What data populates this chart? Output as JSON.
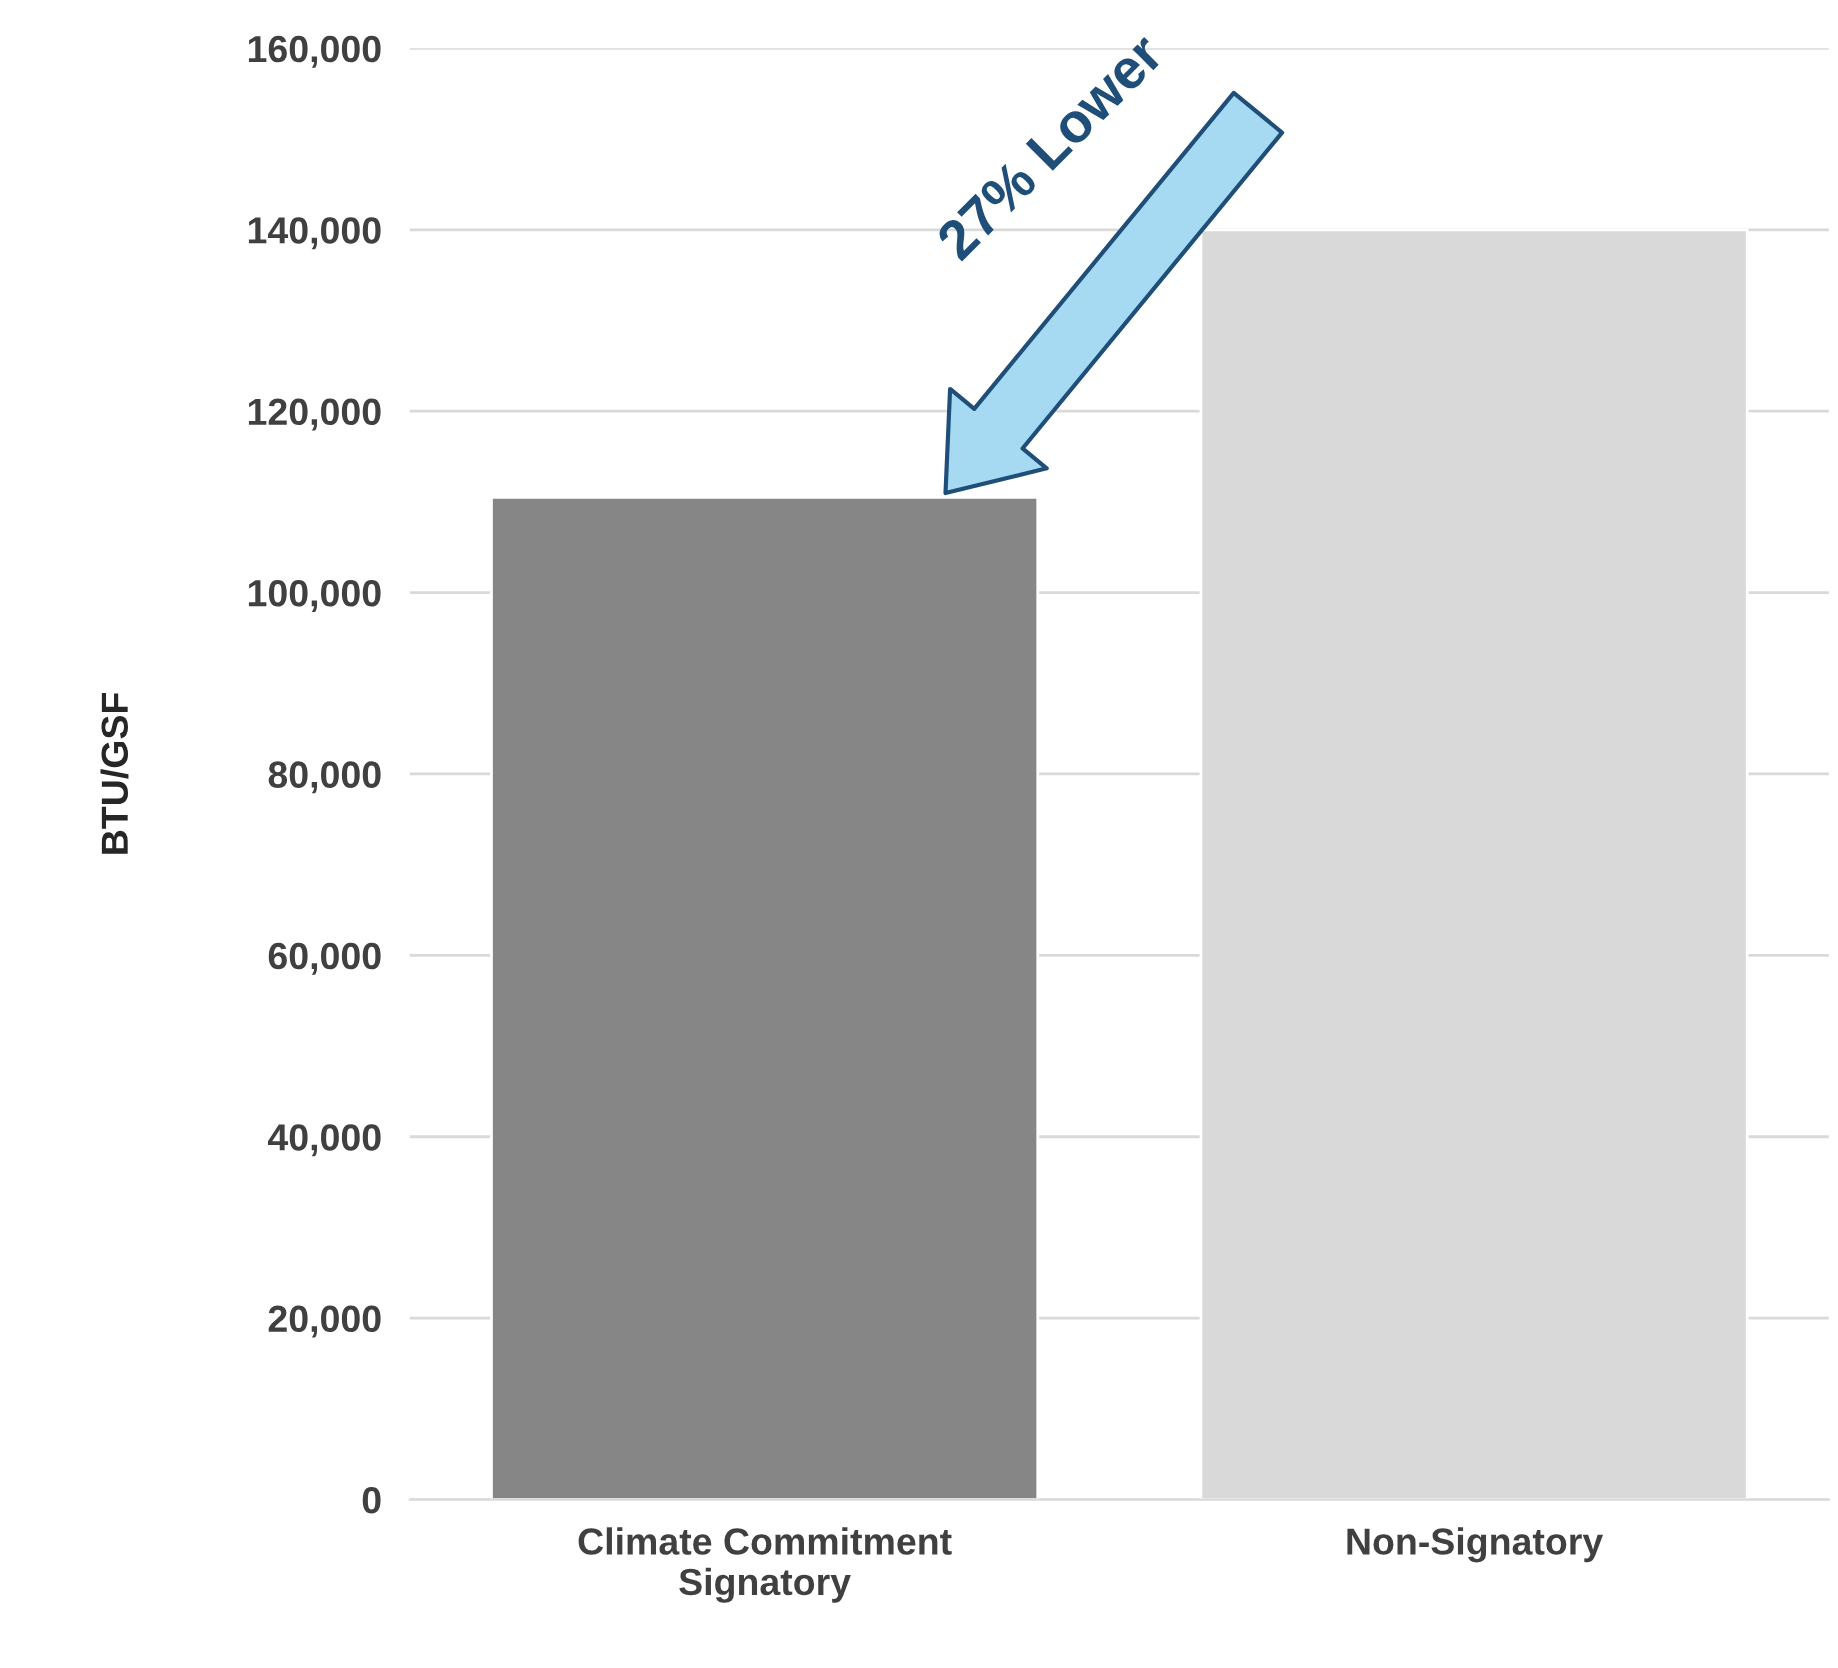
{
  "chart_data": {
    "type": "bar",
    "ylabel": "BTU/GSF",
    "categories": [
      "Climate Commitment\nSignatory",
      "Non-Signatory"
    ],
    "values": [
      110500,
      140000
    ],
    "colors": [
      "#868686",
      "#d9d9d9"
    ],
    "ylim": [
      0,
      160000
    ],
    "yticks": [
      {
        "value": 0,
        "label": "0"
      },
      {
        "value": 20000,
        "label": "20,000"
      },
      {
        "value": 40000,
        "label": "40,000"
      },
      {
        "value": 60000,
        "label": "60,000"
      },
      {
        "value": 80000,
        "label": "80,000"
      },
      {
        "value": 100000,
        "label": "100,000"
      },
      {
        "value": 120000,
        "label": "120,000"
      },
      {
        "value": 140000,
        "label": "140,000"
      },
      {
        "value": 160000,
        "label": "160,000"
      }
    ],
    "grid": "y",
    "annotations": [
      "27% Lower"
    ]
  }
}
